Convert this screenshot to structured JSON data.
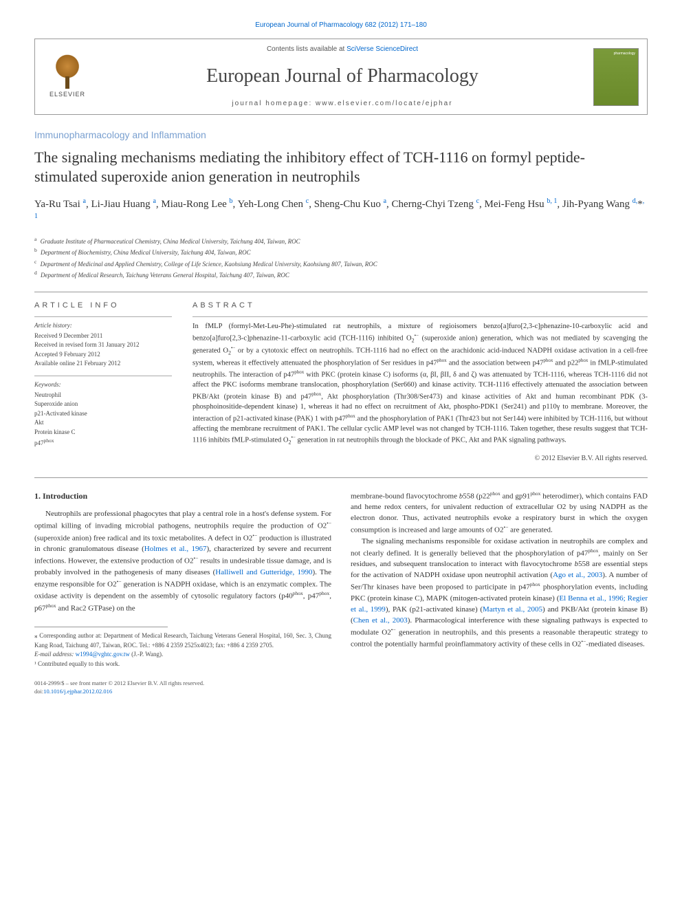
{
  "top_link": "European Journal of Pharmacology 682 (2012) 171–180",
  "header": {
    "elsevier_label": "ELSEVIER",
    "contents_prefix": "Contents lists available at ",
    "contents_link": "SciVerse ScienceDirect",
    "journal_title": "European Journal of Pharmacology",
    "homepage_prefix": "journal homepage: ",
    "homepage_url": "www.elsevier.com/locate/ejphar",
    "cover_label": "pharmacology"
  },
  "category": "Immunopharmacology and Inflammation",
  "title": "The signaling mechanisms mediating the inhibitory effect of TCH-1116 on formyl peptide-stimulated superoxide anion generation in neutrophils",
  "authors_html": "Ya-Ru Tsai <sup>a</sup>, Li-Jiau Huang <sup>a</sup>, Miau-Rong Lee <sup>b</sup>, Yeh-Long Chen <sup>c</sup>, Sheng-Chu Kuo <sup>a</sup>, Cherng-Chyi Tzeng <sup>c</sup>, Mei-Feng Hsu <sup>b, 1</sup>, Jih-Pyang Wang <sup>d,</sup>*<sup>, 1</sup>",
  "affiliations": {
    "a": "Graduate Institute of Pharmaceutical Chemistry, China Medical University, Taichung 404, Taiwan, ROC",
    "b": "Department of Biochemistry, China Medical University, Taichung 404, Taiwan, ROC",
    "c": "Department of Medicinal and Applied Chemistry, College of Life Science, Kaohsiung Medical University, Kaohsiung 807, Taiwan, ROC",
    "d": "Department of Medical Research, Taichung Veterans General Hospital, Taichung 407, Taiwan, ROC"
  },
  "info": {
    "heading": "ARTICLE INFO",
    "history_label": "Article history:",
    "history": [
      "Received 9 December 2011",
      "Received in revised form 31 January 2012",
      "Accepted 9 February 2012",
      "Available online 21 February 2012"
    ],
    "keywords_label": "Keywords:",
    "keywords": [
      "Neutrophil",
      "Superoxide anion",
      "p21-Activated kinase",
      "Akt",
      "Protein kinase C",
      "p47phox"
    ]
  },
  "abstract": {
    "heading": "ABSTRACT",
    "text": "In fMLP (formyl-Met-Leu-Phe)-stimulated rat neutrophils, a mixture of regioisomers benzo[a]furo[2,3-c]phenazine-10-carboxylic acid and benzo[a]furo[2,3-c]phenazine-11-carboxylic acid (TCH-1116) inhibited O2•− (superoxide anion) generation, which was not mediated by scavenging the generated O2•− or by a cytotoxic effect on neutrophils. TCH-1116 had no effect on the arachidonic acid-induced NADPH oxidase activation in a cell-free system, whereas it effectively attenuated the phosphorylation of Ser residues in p47phox and the association between p47phox and p22phox in fMLP-stimulated neutrophils. The interaction of p47phox with PKC (protein kinase C) isoforms (α, βI, βII, δ and ζ) was attenuated by TCH-1116, whereas TCH-1116 did not affect the PKC isoforms membrane translocation, phosphorylation (Ser660) and kinase activity. TCH-1116 effectively attenuated the association between PKB/Akt (protein kinase B) and p47phox, Akt phosphorylation (Thr308/Ser473) and kinase activities of Akt and human recombinant PDK (3-phosphoinositide-dependent kinase) 1, whereas it had no effect on recruitment of Akt, phospho-PDK1 (Ser241) and p110γ to membrane. Moreover, the interaction of p21-activated kinase (PAK) 1 with p47phox and the phosphorylation of PAK1 (Thr423 but not Ser144) were inhibited by TCH-1116, but without affecting the membrane recruitment of PAK1. The cellular cyclic AMP level was not changed by TCH-1116. Taken together, these results suggest that TCH-1116 inhibits fMLP-stimulated O2•− generation in rat neutrophils through the blockade of PKC, Akt and PAK signaling pathways.",
    "copyright": "© 2012 Elsevier B.V. All rights reserved."
  },
  "intro": {
    "heading": "1. Introduction",
    "col1_p1": "Neutrophils are professional phagocytes that play a central role in a host's defense system. For optimal killing of invading microbial pathogens, neutrophils require the production of O2•− (superoxide anion) free radical and its toxic metabolites. A defect in O2•− production is illustrated in chronic granulomatous disease (Holmes et al., 1967), characterized by severe and recurrent infections. However, the extensive production of O2•− results in undesirable tissue damage, and is probably involved in the pathogenesis of many diseases (Halliwell and Gutteridge, 1990). The enzyme responsible for O2•− generation is NADPH oxidase, which is an enzymatic complex. The oxidase activity is dependent on the assembly of cytosolic regulatory factors (p40phox, p47phox, p67phox and Rac2 GTPase) on the",
    "col2_p1": "membrane-bound flavocytochrome b558 (p22phox and gp91phox heterodimer), which contains FAD and heme redox centers, for univalent reduction of extracellular O2 by using NADPH as the electron donor. Thus, activated neutrophils evoke a respiratory burst in which the oxygen consumption is increased and large amounts of O2•− are generated.",
    "col2_p2": "The signaling mechanisms responsible for oxidase activation in neutrophils are complex and not clearly defined. It is generally believed that the phosphorylation of p47phox, mainly on Ser residues, and subsequent translocation to interact with flavocytochrome b558 are essential steps for the activation of NADPH oxidase upon neutrophil activation (Ago et al., 2003). A number of Ser/Thr kinases have been proposed to participate in p47phox phosphorylation events, including PKC (protein kinase C), MAPK (mitogen-activated protein kinase) (El Benna et al., 1996; Regier et al., 1999), PAK (p21-activated kinase) (Martyn et al., 2005) and PKB/Akt (protein kinase B) (Chen et al., 2003). Pharmacological interference with these signaling pathways is expected to modulate O2•− generation in neutrophils, and this presents a reasonable therapeutic strategy to control the potentially harmful proinflammatory activity of these cells in O2•−-mediated diseases."
  },
  "footnotes": {
    "corresponding": "⁎ Corresponding author at: Department of Medical Research, Taichung Veterans General Hospital, 160, Sec. 3, Chung Kang Road, Taichung 407, Taiwan, ROC. Tel.: +886 4 2359 2525x4023; fax: +886 4 2359 2705.",
    "email_label": "E-mail address: ",
    "email": "w1994@vghtc.gov.tw",
    "email_suffix": " (J.-P. Wang).",
    "contributed": "¹ Contributed equally to this work."
  },
  "footer": {
    "issn_line": "0014-2999/$ – see front matter © 2012 Elsevier B.V. All rights reserved.",
    "doi_prefix": "doi:",
    "doi": "10.1016/j.ejphar.2012.02.016"
  },
  "colors": {
    "link": "#0066cc",
    "category": "#7aa0d0",
    "text": "#333333",
    "muted": "#555555",
    "border": "#999999"
  }
}
